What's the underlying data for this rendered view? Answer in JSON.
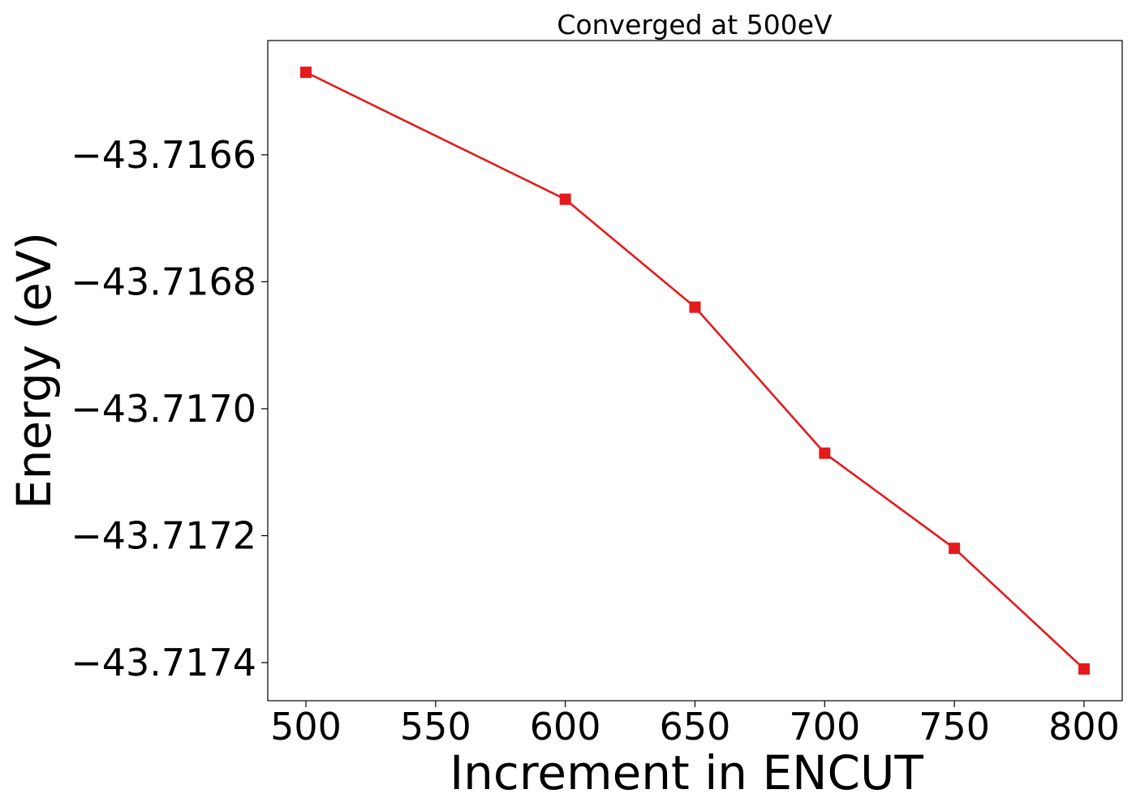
{
  "chart_data": {
    "type": "line",
    "title": "Converged at 500eV",
    "xlabel": "Increment in ENCUT",
    "ylabel": "Energy (eV)",
    "x": [
      500,
      600,
      650,
      700,
      750,
      800
    ],
    "series": [
      {
        "marker": "square",
        "color": "#e41a1c",
        "values": [
          -43.71647,
          -43.71667,
          -43.71684,
          -43.71707,
          -43.71722,
          -43.71741
        ]
      }
    ],
    "xticks": [
      500,
      550,
      600,
      650,
      700,
      750,
      800
    ],
    "xtick_labels": [
      "500",
      "550",
      "600",
      "650",
      "700",
      "750",
      "800"
    ],
    "yticks": [
      -43.7166,
      -43.7168,
      -43.717,
      -43.7172,
      -43.7174
    ],
    "ytick_labels": [
      "−43.7166",
      "−43.7168",
      "−43.7170",
      "−43.7172",
      "−43.7174"
    ],
    "xlim": [
      485.3,
      814.7
    ],
    "ylim": [
      -43.71746,
      -43.71642
    ],
    "grid": false,
    "legend": false
  }
}
